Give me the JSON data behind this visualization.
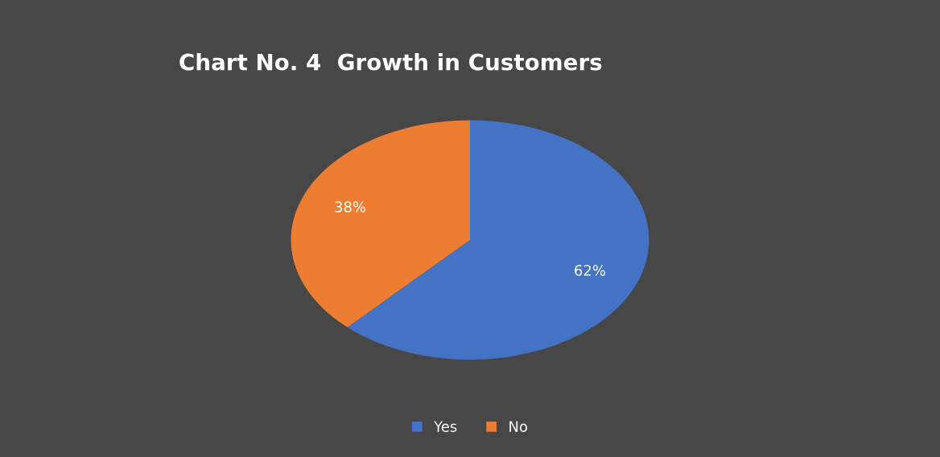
{
  "chart_data": {
    "type": "pie",
    "title": "Chart No. 4  Growth in Customers",
    "categories": [
      "Yes",
      "No"
    ],
    "values": [
      62,
      38
    ],
    "colors": [
      "#4472c4",
      "#ed7d31"
    ],
    "value_labels": [
      "62%",
      "38%"
    ],
    "legend": "bottom"
  }
}
